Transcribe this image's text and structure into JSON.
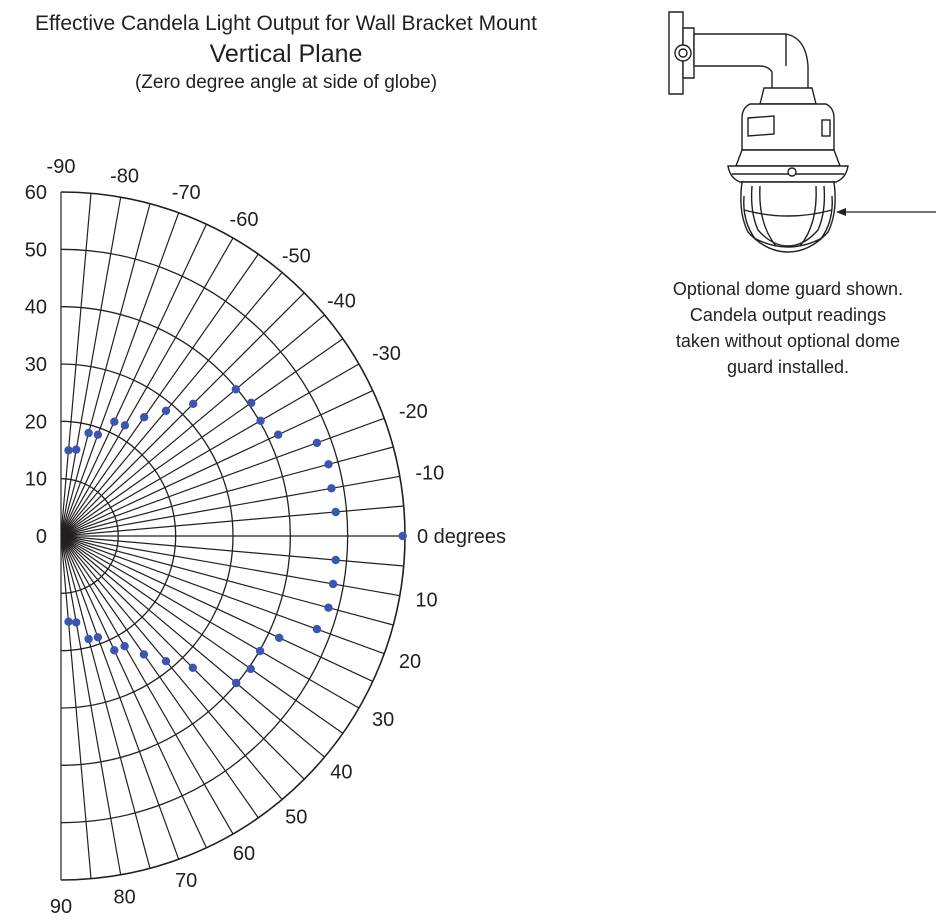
{
  "header": {
    "title": "Effective Candela Light Output for Wall Bracket Mount",
    "subtitle": "Vertical Plane",
    "note": "(Zero degree angle at side of globe)"
  },
  "caption": {
    "line1": "Optional dome guard shown.",
    "line2": "Candela output readings",
    "line3": "taken without optional dome",
    "line4": "guard installed."
  },
  "colors": {
    "points": "#3b55b0",
    "grid": "#231f20",
    "text": "#231f20"
  },
  "chart_data": {
    "type": "scatter",
    "coordinate_system": "polar-half",
    "title": "Effective Candela Light Output for Wall Bracket Mount",
    "subtitle": "Vertical Plane",
    "note": "(Zero degree angle at side of globe)",
    "radial_ticks": [
      "0",
      "10",
      "20",
      "30",
      "40",
      "50",
      "60"
    ],
    "radial_range": [
      0,
      60
    ],
    "angle_range": [
      -90,
      90
    ],
    "angle_labels": [
      {
        "angle": -90,
        "text": "-90"
      },
      {
        "angle": -80,
        "text": "-80"
      },
      {
        "angle": -70,
        "text": "-70"
      },
      {
        "angle": -60,
        "text": "-60"
      },
      {
        "angle": -50,
        "text": "-50"
      },
      {
        "angle": -40,
        "text": "-40"
      },
      {
        "angle": -30,
        "text": "-30"
      },
      {
        "angle": -20,
        "text": "-20"
      },
      {
        "angle": -10,
        "text": "-10"
      },
      {
        "angle": 0,
        "text": "0 degrees"
      },
      {
        "angle": 10,
        "text": "10"
      },
      {
        "angle": 20,
        "text": "20"
      },
      {
        "angle": 30,
        "text": "30"
      },
      {
        "angle": 40,
        "text": "40"
      },
      {
        "angle": 50,
        "text": "50"
      },
      {
        "angle": 60,
        "text": "60"
      },
      {
        "angle": 70,
        "text": "70"
      },
      {
        "angle": 80,
        "text": "80"
      },
      {
        "angle": 90,
        "text": "90"
      }
    ],
    "grid": true,
    "points": [
      {
        "angle": -85,
        "candela": 15
      },
      {
        "angle": -80,
        "candela": 15.3
      },
      {
        "angle": -75,
        "candela": 18.6
      },
      {
        "angle": -70,
        "candela": 18.8
      },
      {
        "angle": -65,
        "candela": 22
      },
      {
        "angle": -60,
        "candela": 22.3
      },
      {
        "angle": -55,
        "candela": 25.3
      },
      {
        "angle": -50,
        "candela": 28.5
      },
      {
        "angle": -45,
        "candela": 32.6
      },
      {
        "angle": -40,
        "candela": 39.8
      },
      {
        "angle": -35,
        "candela": 40.5
      },
      {
        "angle": -30,
        "candela": 40.2
      },
      {
        "angle": -25,
        "candela": 41.8
      },
      {
        "angle": -20,
        "candela": 47.5
      },
      {
        "angle": -15,
        "candela": 48.3
      },
      {
        "angle": -10,
        "candela": 47.9
      },
      {
        "angle": -5,
        "candela": 48.1
      },
      {
        "angle": 0,
        "candela": 59.6
      },
      {
        "angle": 5,
        "candela": 48.1
      },
      {
        "angle": 10,
        "candela": 48.2
      },
      {
        "angle": 15,
        "candela": 48.3
      },
      {
        "angle": 20,
        "candela": 47.5
      },
      {
        "angle": 25,
        "candela": 42
      },
      {
        "angle": 30,
        "candela": 40.1
      },
      {
        "angle": 35,
        "candela": 40.4
      },
      {
        "angle": 40,
        "candela": 39.9
      },
      {
        "angle": 45,
        "candela": 32.5
      },
      {
        "angle": 50,
        "candela": 28.5
      },
      {
        "angle": 55,
        "candela": 25.2
      },
      {
        "angle": 60,
        "candela": 22.2
      },
      {
        "angle": 65,
        "candela": 22
      },
      {
        "angle": 70,
        "candela": 18.8
      },
      {
        "angle": 75,
        "candela": 18.6
      },
      {
        "angle": 80,
        "candela": 15.3
      },
      {
        "angle": 85,
        "candela": 15
      }
    ]
  }
}
